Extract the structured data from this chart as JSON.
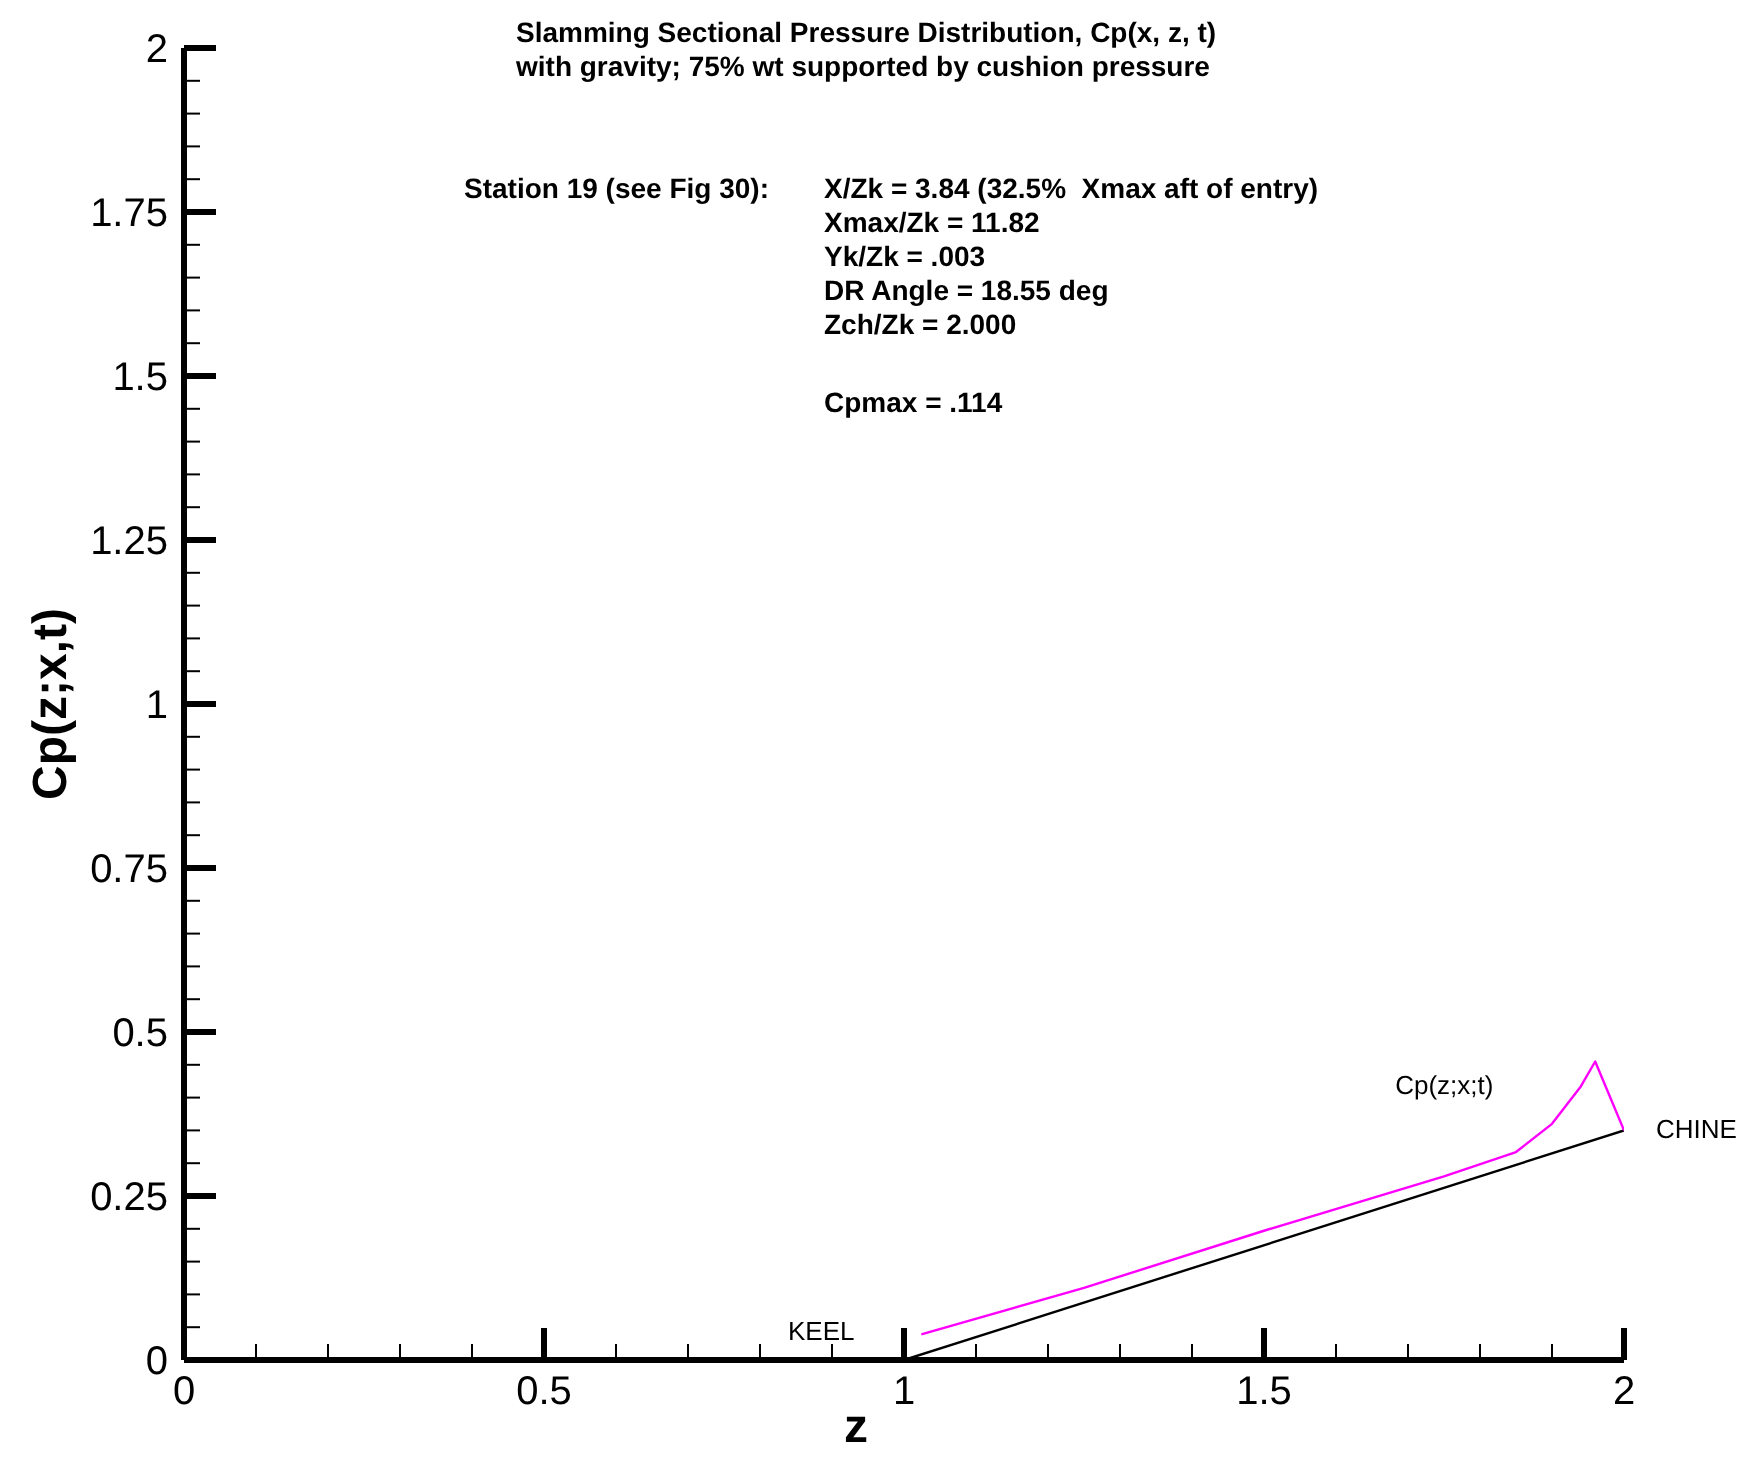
{
  "chart_data": {
    "type": "line",
    "title": "Slamming Sectional Pressure Distribution, Cp(x, z, t)",
    "subtitle": "with gravity; 75% wt supported by cushion pressure",
    "xlabel": "z",
    "ylabel": "Cp(z;x,t)",
    "annotations": [
      "Station 19 (see Fig 30):",
      "X/Zk = 3.84 (32.5%  Xmax aft of entry)",
      "Xmax/Zk = 11.82",
      "Yk/Zk = .003",
      "DR Angle = 18.55 deg",
      "Zch/Zk = 2.000",
      "Cpmax = .114",
      {
        "text": "KEEL",
        "x": 1,
        "y": 0
      },
      {
        "text": "CHINE",
        "x": 2,
        "y": 0.35
      }
    ],
    "series": [
      {
        "color": "#000000",
        "x": [
          1,
          2
        ],
        "values": [
          0,
          0.35
        ]
      },
      {
        "name": "Cp(z;x;t)",
        "color": "#ff00ff",
        "x": [
          1.024,
          1.25,
          1.5,
          1.75,
          1.85,
          1.9,
          1.94,
          1.96,
          2
        ],
        "values": [
          0.039,
          0.11,
          0.197,
          0.28,
          0.317,
          0.36,
          0.417,
          0.455,
          0.35
        ]
      }
    ],
    "xlim": [
      0,
      2
    ],
    "xticks": [
      0,
      {
        "value": 0.1,
        "label": null
      },
      {
        "value": 0.2,
        "label": null
      },
      {
        "value": 0.3,
        "label": null
      },
      {
        "value": 0.4,
        "label": null
      },
      0.5,
      {
        "value": 0.6,
        "label": null
      },
      {
        "value": 0.7,
        "label": null
      },
      {
        "value": 0.8,
        "label": null
      },
      {
        "value": 0.9,
        "label": null
      },
      1,
      {
        "value": 1.1,
        "label": null
      },
      {
        "value": 1.2,
        "label": null
      },
      {
        "value": 1.3,
        "label": null
      },
      {
        "value": 1.4,
        "label": null
      },
      1.5,
      {
        "value": 1.6,
        "label": null
      },
      {
        "value": 1.7,
        "label": null
      },
      {
        "value": 1.8,
        "label": null
      },
      {
        "value": 1.9,
        "label": null
      },
      2
    ],
    "ylim": [
      0,
      2
    ],
    "yticks": [
      0,
      {
        "value": 0.05,
        "label": null
      },
      {
        "value": 0.1,
        "label": null
      },
      {
        "value": 0.15,
        "label": null
      },
      {
        "value": 0.2,
        "label": null
      },
      0.25,
      {
        "value": 0.3,
        "label": null
      },
      {
        "value": 0.35,
        "label": null
      },
      {
        "value": 0.4,
        "label": null
      },
      {
        "value": 0.45,
        "label": null
      },
      0.5,
      {
        "value": 0.55,
        "label": null
      },
      {
        "value": 0.6,
        "label": null
      },
      {
        "value": 0.65,
        "label": null
      },
      {
        "value": 0.7,
        "label": null
      },
      0.75,
      {
        "value": 0.8,
        "label": null
      },
      {
        "value": 0.85,
        "label": null
      },
      {
        "value": 0.9,
        "label": null
      },
      {
        "value": 0.95,
        "label": null
      },
      1,
      {
        "value": 1.05,
        "label": null
      },
      {
        "value": 1.1,
        "label": null
      },
      {
        "value": 1.15,
        "label": null
      },
      {
        "value": 1.2,
        "label": null
      },
      1.25,
      {
        "value": 1.3,
        "label": null
      },
      {
        "value": 1.35,
        "label": null
      },
      {
        "value": 1.4,
        "label": null
      },
      {
        "value": 1.45,
        "label": null
      },
      1.5,
      {
        "value": 1.55,
        "label": null
      },
      {
        "value": 1.6,
        "label": null
      },
      {
        "value": 1.65,
        "label": null
      },
      {
        "value": 1.7,
        "label": null
      },
      1.75,
      {
        "value": 1.8,
        "label": null
      },
      {
        "value": 1.85,
        "label": null
      },
      {
        "value": 1.9,
        "label": null
      },
      {
        "value": 1.95,
        "label": null
      },
      2
    ],
    "grid": false,
    "legend": false,
    "marker": "none",
    "line_style": "solid"
  }
}
